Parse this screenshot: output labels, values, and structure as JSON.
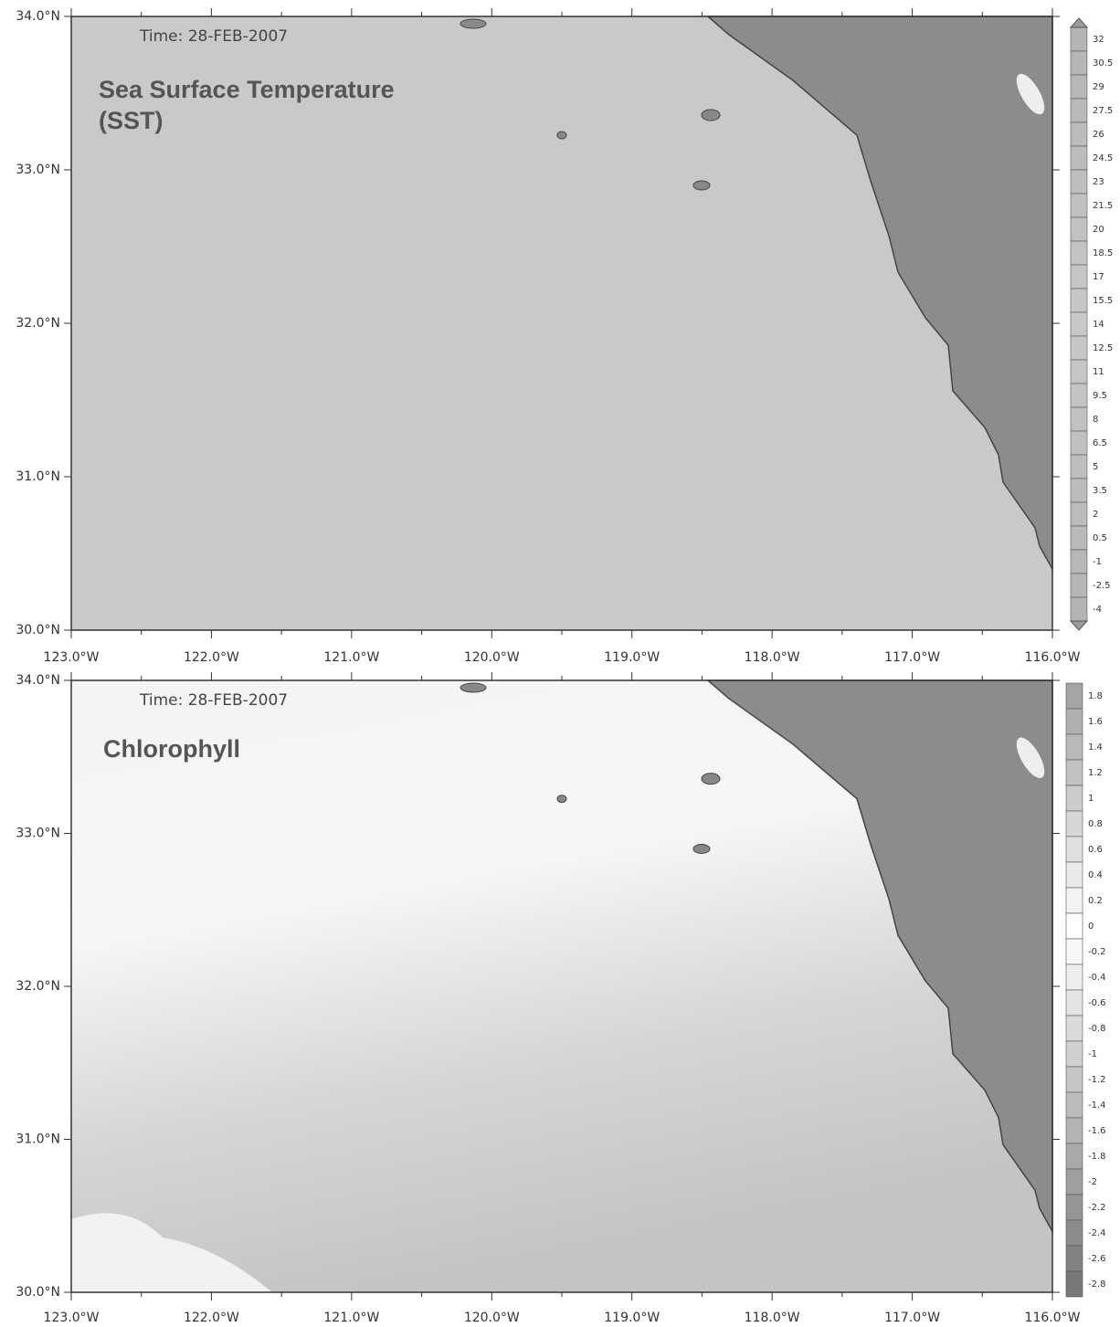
{
  "panels": [
    {
      "time_label": "Time: 28-FEB-2007",
      "title": [
        "Sea Surface Temperature",
        "(SST)"
      ],
      "y_labels": [
        "34.0°N",
        "33.0°N",
        "32.0°N",
        "31.0°N",
        "30.0°N"
      ],
      "x_labels": [
        "123.0°W",
        "122.0°W",
        "121.0°W",
        "120.0°W",
        "119.0°W",
        "118.0°W",
        "117.0°W",
        "116.0°W"
      ],
      "colorbar_labels": [
        "32",
        "30.5",
        "29",
        "27.5",
        "26",
        "24.5",
        "23",
        "21.5",
        "20",
        "18.5",
        "17",
        "15.5",
        "14",
        "12.5",
        "11",
        "9.5",
        "8",
        "6.5",
        "5",
        "3.5",
        "2",
        "0.5",
        "-1",
        "-2.5",
        "-4"
      ]
    },
    {
      "time_label": "Time: 28-FEB-2007",
      "title": [
        "Chlorophyll"
      ],
      "y_labels": [
        "34.0°N",
        "33.0°N",
        "32.0°N",
        "31.0°N",
        "30.0°N"
      ],
      "x_labels": [
        "123.0°W",
        "122.0°W",
        "121.0°W",
        "120.0°W",
        "119.0°W",
        "118.0°W",
        "117.0°W",
        "116.0°W"
      ],
      "colorbar_labels": [
        "1.8",
        "1.6",
        "1.4",
        "1.2",
        "1",
        "0.8",
        "0.6",
        "0.4",
        "0.2",
        "0",
        "-0.2",
        "-0.4",
        "-0.6",
        "-0.8",
        "-1",
        "-1.2",
        "-1.4",
        "-1.6",
        "-1.8",
        "-2",
        "-2.2",
        "-2.4",
        "-2.6",
        "-2.8"
      ]
    }
  ]
}
